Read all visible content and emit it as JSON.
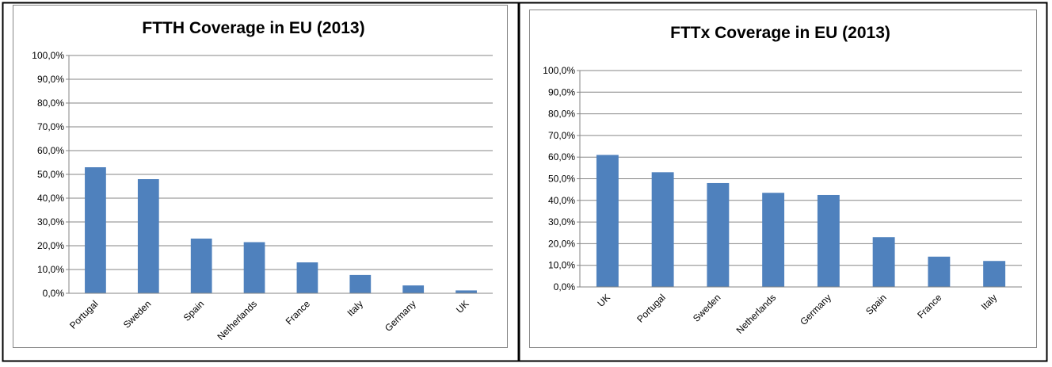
{
  "chart_data": [
    {
      "type": "bar",
      "title": "FTTH Coverage in EU (2013)",
      "categories": [
        "Portugal",
        "Sweden",
        "Spain",
        "Netherlands",
        "France",
        "Italy",
        "Germany",
        "UK"
      ],
      "values": [
        53,
        48,
        23,
        21.5,
        13,
        7.7,
        3.3,
        1.2
      ],
      "color": "#4f81bd",
      "ylim": [
        0,
        100
      ],
      "yticks": [
        {
          "value": 0,
          "label": "0,0%"
        },
        {
          "value": 10,
          "label": "10,0%"
        },
        {
          "value": 20,
          "label": "20,0%"
        },
        {
          "value": 30,
          "label": "30,0%"
        },
        {
          "value": 40,
          "label": "40,0%"
        },
        {
          "value": 50,
          "label": "50,0%"
        },
        {
          "value": 60,
          "label": "60,0%"
        },
        {
          "value": 70,
          "label": "70,0%"
        },
        {
          "value": 80,
          "label": "80,0%"
        },
        {
          "value": 90,
          "label": "90,0%"
        },
        {
          "value": 100,
          "label": "100,0%"
        }
      ],
      "grid": true
    },
    {
      "type": "bar",
      "title": "FTTx Coverage in EU (2013)",
      "categories": [
        "UK",
        "Portugal",
        "Sweden",
        "Netherlands",
        "Germany",
        "Spain",
        "France",
        "Italy"
      ],
      "values": [
        61,
        53,
        48,
        43.5,
        42.5,
        23,
        14,
        12
      ],
      "color": "#4f81bd",
      "ylim": [
        0,
        100
      ],
      "yticks": [
        {
          "value": 0,
          "label": "0,0%"
        },
        {
          "value": 10,
          "label": "10,0%"
        },
        {
          "value": 20,
          "label": "20,0%"
        },
        {
          "value": 30,
          "label": "30,0%"
        },
        {
          "value": 40,
          "label": "40,0%"
        },
        {
          "value": 50,
          "label": "50,0%"
        },
        {
          "value": 60,
          "label": "60,0%"
        },
        {
          "value": 70,
          "label": "70,0%"
        },
        {
          "value": 80,
          "label": "80,0%"
        },
        {
          "value": 90,
          "label": "90,0%"
        },
        {
          "value": 100,
          "label": "100,0%"
        }
      ],
      "grid": true
    }
  ]
}
